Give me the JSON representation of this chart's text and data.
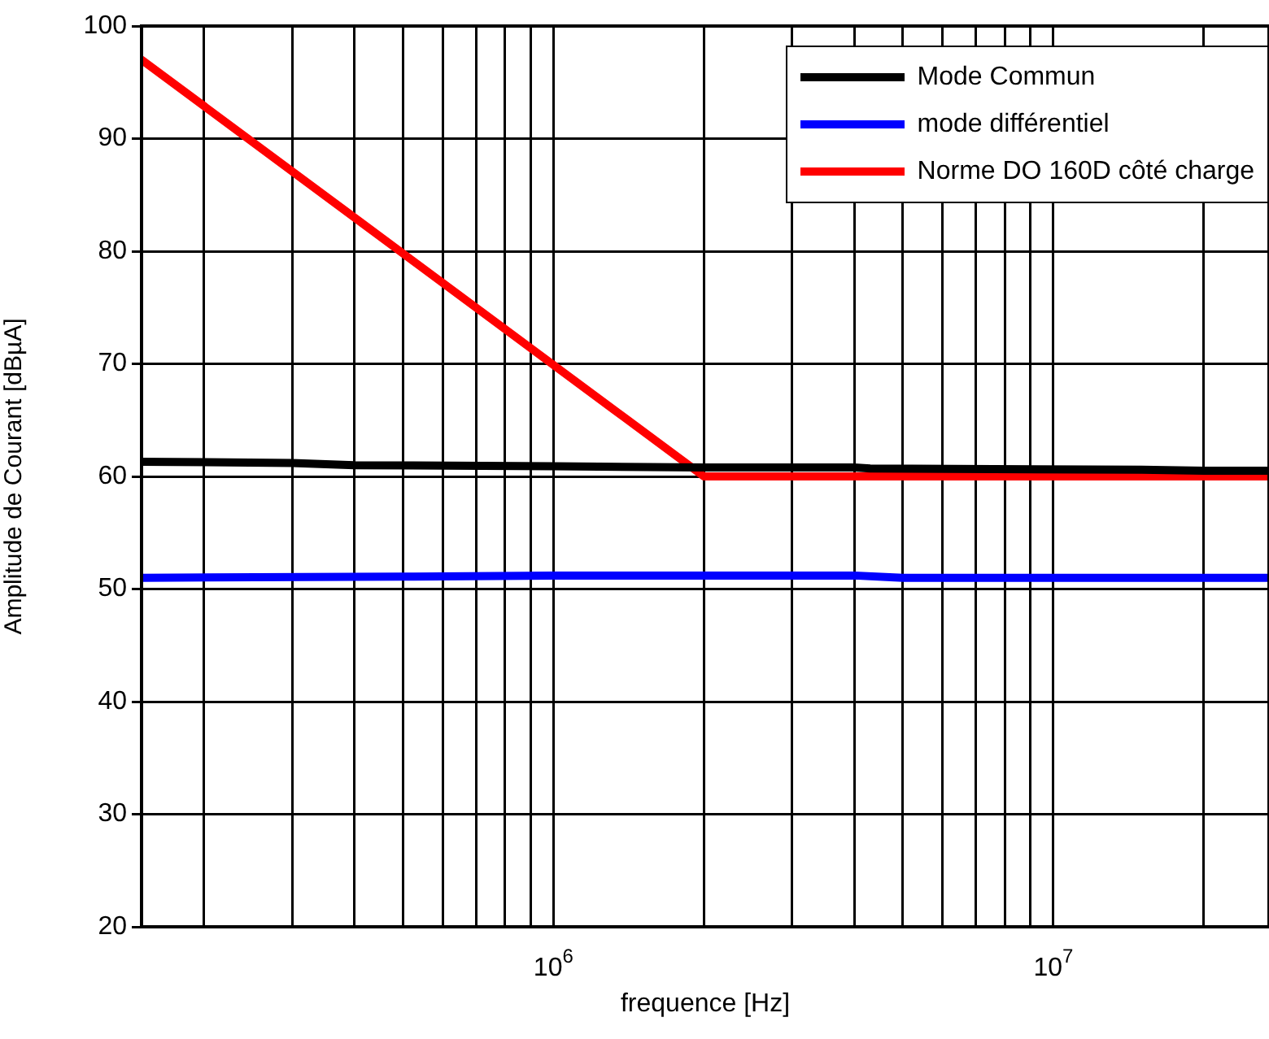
{
  "chart_data": {
    "type": "line",
    "xlabel": "frequence [Hz]",
    "ylabel": "Amplitude de Courant [dBµA]",
    "log": "x",
    "grid": true,
    "legend": "top right",
    "line_style": "solid",
    "marker": "none",
    "xlim": [
      150000,
      27000000
    ],
    "ylim": [
      20,
      100
    ],
    "xticks": [
      {
        "value": 200000,
        "label": null
      },
      {
        "value": 300000,
        "label": null
      },
      {
        "value": 400000,
        "label": null
      },
      {
        "value": 500000,
        "label": null
      },
      {
        "value": 600000,
        "label": null
      },
      {
        "value": 700000,
        "label": null
      },
      {
        "value": 800000,
        "label": null
      },
      {
        "value": 900000,
        "label": null
      },
      {
        "value": 1000000,
        "label": "10$^{6}$"
      },
      {
        "value": 2000000,
        "label": null
      },
      {
        "value": 3000000,
        "label": null
      },
      {
        "value": 4000000,
        "label": null
      },
      {
        "value": 5000000,
        "label": null
      },
      {
        "value": 6000000,
        "label": null
      },
      {
        "value": 7000000,
        "label": null
      },
      {
        "value": 8000000,
        "label": null
      },
      {
        "value": 9000000,
        "label": null
      },
      {
        "value": 10000000,
        "label": "10$^{7}$"
      },
      {
        "value": 20000000,
        "label": null
      }
    ],
    "yticks": [
      20,
      30,
      40,
      50,
      60,
      70,
      80,
      90,
      100
    ],
    "series": [
      {
        "name": "Mode Commun",
        "color": "#000000",
        "x": [
          150000,
          300000,
          400000,
          1000000,
          2000000,
          4000000,
          4300000,
          15000000,
          20000000,
          27000000
        ],
        "values": [
          61.3,
          61.2,
          61.0,
          60.9,
          60.8,
          60.8,
          60.7,
          60.6,
          60.5,
          60.5
        ]
      },
      {
        "name": "mode différentiel",
        "color": "#0000ff",
        "x": [
          150000,
          500000,
          1000000,
          2000000,
          4000000,
          5000000,
          10000000,
          27000000
        ],
        "values": [
          51.0,
          51.1,
          51.2,
          51.2,
          51.2,
          51.0,
          51.0,
          51.0
        ]
      },
      {
        "name": "Norme DO 160D côté charge",
        "color": "#ff0000",
        "x": [
          150000,
          2000000,
          27000000
        ],
        "values": [
          97,
          60,
          60
        ]
      }
    ]
  }
}
